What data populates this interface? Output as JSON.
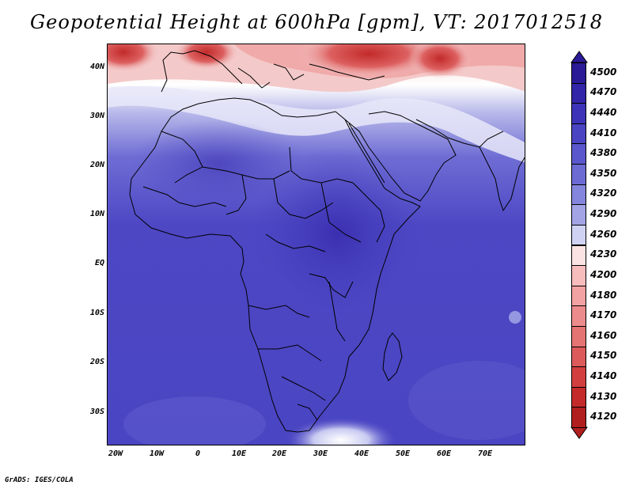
{
  "title": "Geopotential Height at 600hPa [gpm], VT: 2017012518",
  "credit": "GrADS: IGES/COLA",
  "lat_labels": [
    "40N",
    "30N",
    "20N",
    "10N",
    "EQ",
    "10S",
    "20S",
    "30S"
  ],
  "lon_labels": [
    "20W",
    "10W",
    "0",
    "10E",
    "20E",
    "30E",
    "40E",
    "50E",
    "60E",
    "70E"
  ],
  "colorbar": {
    "labels": [
      "4500",
      "4470",
      "4440",
      "4410",
      "4380",
      "4350",
      "4320",
      "4290",
      "4260",
      "4230",
      "4200",
      "4180",
      "4170",
      "4160",
      "4150",
      "4140",
      "4130",
      "4120"
    ],
    "colors": [
      "#2a1a95",
      "#3225a8",
      "#3c33b8",
      "#4a44c2",
      "#5a56cb",
      "#6c6bd4",
      "#8485dc",
      "#a2a4e6",
      "#d0d2f3",
      "#fbe3e3",
      "#f7bcbc",
      "#f2a2a2",
      "#ec8b8b",
      "#e47373",
      "#dc5a5a",
      "#d23f3f",
      "#c42a2a",
      "#b01e1e"
    ]
  }
}
